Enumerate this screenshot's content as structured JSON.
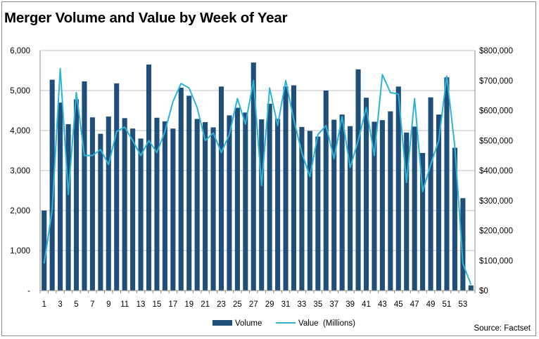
{
  "chart_data": {
    "type": "bar",
    "title": "Merger Volume and Value by Week of Year",
    "source": "Source: Factset",
    "xlabel": "",
    "ylabel": "",
    "weeks": [
      1,
      2,
      3,
      4,
      5,
      6,
      7,
      8,
      9,
      10,
      11,
      12,
      13,
      14,
      15,
      16,
      17,
      18,
      19,
      20,
      21,
      22,
      23,
      24,
      25,
      26,
      27,
      28,
      29,
      30,
      31,
      32,
      33,
      34,
      35,
      36,
      37,
      38,
      39,
      40,
      41,
      42,
      43,
      44,
      45,
      46,
      47,
      48,
      49,
      50,
      51,
      52,
      53,
      54
    ],
    "x_tick_labels": [
      "1",
      "3",
      "5",
      "7",
      "9",
      "11",
      "13",
      "15",
      "17",
      "19",
      "21",
      "23",
      "25",
      "27",
      "29",
      "31",
      "33",
      "35",
      "37",
      "39",
      "41",
      "43",
      "45",
      "47",
      "49",
      "51",
      "53"
    ],
    "y_left": {
      "ylim": [
        0,
        6000
      ],
      "tick_labels": [
        "-",
        "1,000",
        "2,000",
        "3,000",
        "4,000",
        "5,000",
        "6,000"
      ],
      "tick_values": [
        0,
        1000,
        2000,
        3000,
        4000,
        5000,
        6000
      ]
    },
    "y_right": {
      "ylim": [
        0,
        800000
      ],
      "tick_labels": [
        "$0",
        "$100,000",
        "$200,000",
        "$300,000",
        "$400,000",
        "$500,000",
        "$600,000",
        "$700,000",
        "$800,000"
      ],
      "tick_values": [
        0,
        100000,
        200000,
        300000,
        400000,
        500000,
        600000,
        700000,
        800000
      ]
    },
    "grid": "horizontal",
    "legend_position": "bottom-center",
    "series": [
      {
        "name": "Volume",
        "kind": "bar",
        "axis": "left",
        "color": "#1f4e79",
        "values": [
          2000,
          5270,
          4700,
          4160,
          4780,
          5230,
          4330,
          3920,
          4350,
          5180,
          4310,
          4050,
          3800,
          5650,
          4320,
          4230,
          4050,
          5070,
          4870,
          4290,
          4210,
          4080,
          5100,
          4380,
          4570,
          4450,
          5700,
          4280,
          4670,
          4290,
          5100,
          5130,
          4090,
          3990,
          3850,
          5000,
          4270,
          4400,
          4110,
          5530,
          4820,
          4220,
          4260,
          4480,
          5100,
          3950,
          4100,
          3440,
          4830,
          4400,
          5330,
          3570,
          2310,
          130
        ]
      },
      {
        "name": "Value  (Millions)",
        "kind": "line",
        "axis": "right",
        "color": "#2bb3d9",
        "values": [
          90000,
          270000,
          740000,
          320000,
          660000,
          450000,
          450000,
          470000,
          420000,
          530000,
          545000,
          500000,
          450000,
          500000,
          460000,
          530000,
          630000,
          690000,
          675000,
          610000,
          500000,
          525000,
          460000,
          520000,
          640000,
          555000,
          700000,
          350000,
          675000,
          550000,
          700000,
          570000,
          460000,
          380000,
          520000,
          550000,
          440000,
          580000,
          410000,
          500000,
          610000,
          450000,
          720000,
          660000,
          655000,
          360000,
          640000,
          330000,
          420000,
          500000,
          715000,
          480000,
          90000,
          20000
        ]
      }
    ]
  }
}
